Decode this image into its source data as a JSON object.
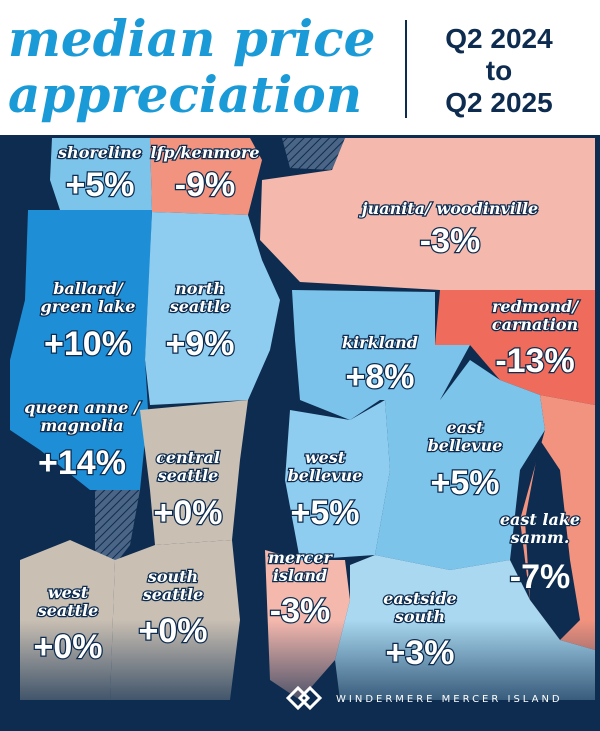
{
  "header": {
    "title_lines": [
      "median price",
      "appreciation"
    ],
    "period_lines": [
      "Q2 2024",
      "to",
      "Q2 2025"
    ]
  },
  "regions": [
    {
      "name": [
        "shoreline"
      ],
      "change": "+5%"
    },
    {
      "name": [
        "lfp/kenmore"
      ],
      "change": "-9%"
    },
    {
      "name": [
        "juanita/ woodinville"
      ],
      "change": "-3%"
    },
    {
      "name": [
        "ballard/",
        "green lake"
      ],
      "change": "+10%"
    },
    {
      "name": [
        "north",
        "seattle"
      ],
      "change": "+9%"
    },
    {
      "name": [
        "redmond/",
        "carnation"
      ],
      "change": "-13%"
    },
    {
      "name": [
        "kirkland"
      ],
      "change": "+8%"
    },
    {
      "name": [
        "queen anne /",
        "magnolia"
      ],
      "change": "+14%"
    },
    {
      "name": [
        "central",
        "seattle"
      ],
      "change": "+0%"
    },
    {
      "name": [
        "west",
        "bellevue"
      ],
      "change": "+5%"
    },
    {
      "name": [
        "east",
        "bellevue"
      ],
      "change": "+5%"
    },
    {
      "name": [
        "east lake",
        "samm."
      ],
      "change": "-7%"
    },
    {
      "name": [
        "mercer",
        "island"
      ],
      "change": "-3%"
    },
    {
      "name": [
        "west",
        "seattle"
      ],
      "change": "+0%"
    },
    {
      "name": [
        "south",
        "seattle"
      ],
      "change": "+0%"
    },
    {
      "name": [
        "eastside",
        "south"
      ],
      "change": "+3%"
    }
  ],
  "footer": {
    "brand": "WINDERMERE MERCER ISLAND"
  }
}
